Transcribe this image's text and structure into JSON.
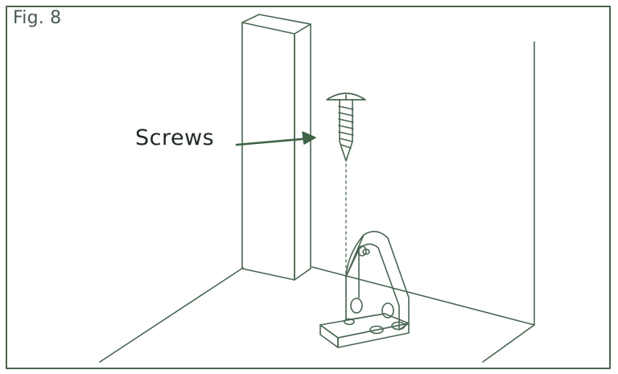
{
  "figure": {
    "label": "Fig. 8",
    "callout": "Screws"
  },
  "colors": {
    "line": "#4a6651",
    "arrow": "#3f6347",
    "text": "#1e2820",
    "background": "#ffffff"
  }
}
